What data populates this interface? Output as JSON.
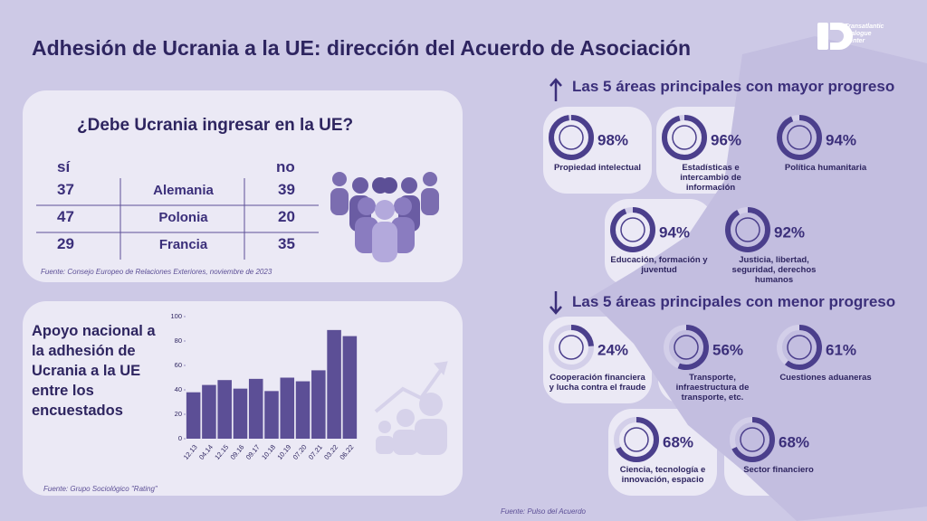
{
  "header": {
    "title": "Adhesión de Ucrania a la UE: dirección del Acuerdo de Asociación",
    "logo": [
      "Transatlantic",
      "Dialogue",
      "Center"
    ]
  },
  "survey": {
    "question": "¿Debe Ucrania ingresar en la UE?",
    "columns": [
      "sí",
      "no"
    ],
    "rows": [
      {
        "country": "Alemania",
        "yes": 37,
        "no": 39
      },
      {
        "country": "Polonia",
        "yes": 47,
        "no": 20
      },
      {
        "country": "Francia",
        "yes": 29,
        "no": 35
      }
    ],
    "source": "Fuente: Consejo Europeo de Relaciones Exteriores, noviembre de 2023"
  },
  "chart_data": {
    "type": "bar",
    "title": "Apoyo nacional a la adhesión de Ucrania a la UE entre los encuestados",
    "categories": [
      "12.13",
      "04.14",
      "12.15",
      "09.16",
      "09.17",
      "10.18",
      "10.19",
      "07.20",
      "07.21",
      "03.22",
      "06.22"
    ],
    "values": [
      38,
      44,
      48,
      41,
      49,
      39,
      50,
      47,
      56,
      89,
      84
    ],
    "color": "#5c4f96",
    "ylim": [
      0,
      100
    ],
    "yticks": [
      0,
      20,
      40,
      60,
      80,
      100
    ],
    "source": "Fuente: Grupo Sociológico \"Rating\""
  },
  "progress": {
    "top": {
      "title": "Las 5 áreas principales con mayor progreso",
      "items": [
        {
          "label": "Propiedad intelectual",
          "value": 98,
          "value_label": "98%"
        },
        {
          "label": "Estadísticas e intercambio de información",
          "value": 96,
          "value_label": "96%"
        },
        {
          "label": "Política humanitaria",
          "value": 94,
          "value_label": "94%"
        },
        {
          "label": "Educación, formación y juventud",
          "value": 94,
          "value_label": "94%"
        },
        {
          "label": "Justicia, libertad, seguridad, derechos humanos",
          "value": 92,
          "value_label": "92%"
        }
      ]
    },
    "bottom": {
      "title": "Las 5 áreas principales con menor progreso",
      "items": [
        {
          "label": "Cooperación financiera y lucha contra el fraude",
          "value": 24,
          "value_label": "24%"
        },
        {
          "label": "Transporte, infraestructura de transporte, etc.",
          "value": 56,
          "value_label": "56%"
        },
        {
          "label": "Cuestiones aduaneras",
          "value": 61,
          "value_label": "61%"
        },
        {
          "label": "Ciencia, tecnología e innovación, espacio",
          "value": 68,
          "value_label": "68%"
        },
        {
          "label": "Sector financiero",
          "value": 68,
          "value_label": "68%"
        }
      ]
    },
    "source": "Fuente: Pulso del Acuerdo"
  }
}
